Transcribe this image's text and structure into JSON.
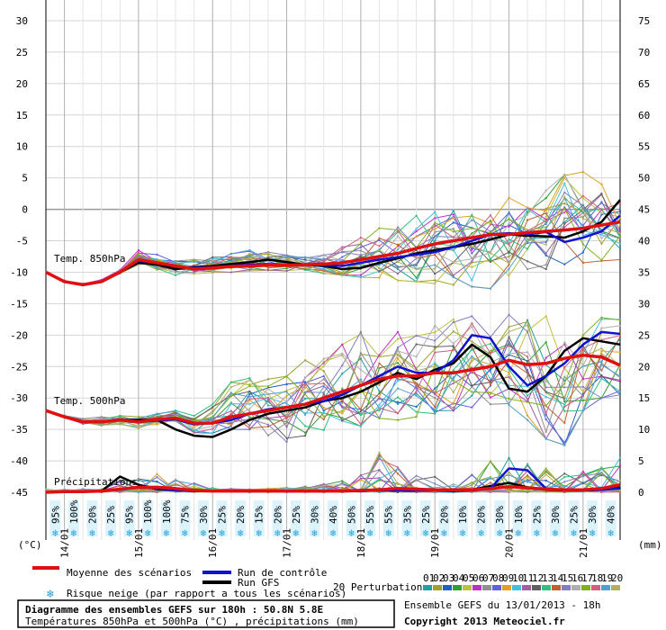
{
  "chart_data": {
    "type": "line",
    "title": "Diagramme des ensembles GEFS sur 180h : 50.8N 5.8E",
    "subtitle": "Températures 850hPa et 500hPa (°C) , précipitations (mm)",
    "left_axis": {
      "unit": "(°C)",
      "ticks": [
        30,
        25,
        20,
        15,
        10,
        5,
        0,
        -5,
        -10,
        -15,
        -20,
        -25,
        -30,
        -35,
        -40,
        -45
      ],
      "range": [
        -45,
        30
      ]
    },
    "right_axis": {
      "unit": "(mm)",
      "ticks": [
        75,
        70,
        65,
        60,
        55,
        50,
        45,
        40,
        35,
        30,
        25,
        20,
        15,
        10,
        5,
        0
      ],
      "range": [
        0,
        75
      ]
    },
    "x_step_hours": 6,
    "date_labels": [
      {
        "hour": 6,
        "label": "14/01"
      },
      {
        "hour": 30,
        "label": "15/01"
      },
      {
        "hour": 54,
        "label": "16/01"
      },
      {
        "hour": 78,
        "label": "17/01"
      },
      {
        "hour": 102,
        "label": "18/01"
      },
      {
        "hour": 126,
        "label": "19/01"
      },
      {
        "hour": 150,
        "label": "20/01"
      },
      {
        "hour": 174,
        "label": "21/01"
      }
    ],
    "panel_labels": {
      "t850": "Temp. 850hPa",
      "t500": "Temp. 500hPa",
      "precip": "Précipitations"
    },
    "snow_risk": [
      "95%",
      "100%",
      "20%",
      "25%",
      "95%",
      "100%",
      "100%",
      "75%",
      "30%",
      "25%",
      "20%",
      "15%",
      "20%",
      "25%",
      "30%",
      "40%",
      "50%",
      "55%",
      "55%",
      "35%",
      "25%",
      "20%",
      "10%",
      "20%",
      "30%",
      "10%",
      "25%",
      "30%",
      "25%",
      "30%",
      "40%"
    ],
    "series": [
      {
        "name": "Moyenne des scénarios",
        "color": "#e01010",
        "t850": [
          -10,
          -11.5,
          -12,
          -11.5,
          -10,
          -8,
          -8.5,
          -9,
          -9.5,
          -9.3,
          -9.1,
          -9,
          -8.9,
          -8.9,
          -8.8,
          -8.7,
          -8.5,
          -8.0,
          -7.5,
          -7,
          -6.2,
          -5.5,
          -5,
          -4.5,
          -4,
          -4,
          -3.7,
          -3.5,
          -3.3,
          -3,
          -2.5,
          -2
        ],
        "t500": [
          -32,
          -33,
          -33.8,
          -33.8,
          -33.5,
          -33.8,
          -33.4,
          -33.2,
          -34,
          -34,
          -33,
          -32.5,
          -32,
          -31.5,
          -31,
          -30,
          -29,
          -28,
          -27,
          -26.5,
          -26.5,
          -26,
          -26,
          -25.5,
          -25,
          -24,
          -24.7,
          -24.5,
          -23.7,
          -23.2,
          -23.5,
          -24.8
        ],
        "precip": [
          0,
          0.1,
          0.1,
          0.2,
          0.5,
          0.8,
          0.8,
          0.6,
          0.3,
          0.2,
          0.2,
          0.2,
          0.2,
          0.2,
          0.2,
          0.2,
          0.2,
          0.3,
          0.4,
          0.6,
          0.5,
          0.4,
          0.4,
          0.4,
          0.6,
          0.9,
          0.7,
          0.5,
          0.4,
          0.4,
          0.6,
          1.2
        ]
      },
      {
        "name": "Run de contrôle",
        "color": "#1010d0",
        "t850": [
          -10,
          -11.5,
          -12,
          -11.5,
          -10,
          -8.2,
          -8.5,
          -9.1,
          -9.3,
          -9.2,
          -9.0,
          -8.8,
          -8.7,
          -8.8,
          -8.8,
          -8.9,
          -9.0,
          -8.5,
          -8.0,
          -7.6,
          -7.2,
          -6.8,
          -6.0,
          -5.0,
          -4.0,
          -3.8,
          -4.0,
          -3.6,
          -5.2,
          -4.5,
          -3.5,
          -1.0
        ],
        "t500": [
          -32,
          -33,
          -33.8,
          -33.8,
          -33.5,
          -33.8,
          -33.6,
          -33.4,
          -34.2,
          -34.0,
          -33.5,
          -32.5,
          -31.8,
          -31.5,
          -31.0,
          -30.5,
          -29.5,
          -28.0,
          -26.5,
          -25.0,
          -26.0,
          -26.0,
          -24.0,
          -20.0,
          -20.5,
          -25.0,
          -28.0,
          -26.5,
          -24.5,
          -21.5,
          -19.5,
          -19.8
        ],
        "precip": [
          0,
          0.1,
          0.1,
          0.2,
          0.4,
          0.8,
          0.6,
          0.3,
          0.2,
          0.2,
          0.2,
          0.2,
          0.2,
          0.2,
          0.2,
          0.2,
          0.2,
          0.2,
          0.3,
          0.3,
          0.3,
          0.3,
          0.2,
          0.3,
          0.6,
          3.8,
          3.5,
          0.6,
          0.3,
          0.3,
          0.4,
          0.6
        ]
      },
      {
        "name": "Run GFS",
        "color": "#000000",
        "t850": [
          -10,
          -11.5,
          -12,
          -11.5,
          -10,
          -8.5,
          -8.8,
          -9.5,
          -9.2,
          -9.0,
          -8.7,
          -8.4,
          -8.0,
          -8.4,
          -8.8,
          -9.0,
          -9.5,
          -9.3,
          -8.5,
          -7.8,
          -7.0,
          -6.5,
          -6.0,
          -5.5,
          -4.8,
          -4.0,
          -4.2,
          -4.3,
          -4.5,
          -3.5,
          -2.0,
          1.5
        ],
        "t500": [
          -32,
          -33,
          -33.8,
          -33.8,
          -33.5,
          -33.5,
          -33.5,
          -35.0,
          -36.0,
          -36.2,
          -35.0,
          -33.5,
          -32.5,
          -32.0,
          -31.5,
          -30.5,
          -30.0,
          -29.0,
          -27.5,
          -26.0,
          -27.0,
          -25.5,
          -24.5,
          -21.5,
          -23.5,
          -28.5,
          -29.0,
          -26.5,
          -22.5,
          -20.5,
          -21.0,
          -21.5
        ],
        "precip": [
          0,
          0.1,
          0.1,
          0.2,
          2.5,
          1.2,
          0.5,
          0.3,
          0.2,
          0.2,
          0.2,
          0.2,
          0.2,
          0.2,
          0.2,
          0.2,
          0.2,
          0.2,
          0.3,
          0.3,
          0.3,
          0.3,
          0.2,
          0.4,
          1.0,
          1.5,
          0.8,
          0.4,
          0.3,
          0.3,
          0.4,
          0.8
        ]
      }
    ],
    "perturbations": {
      "label": "20 Perturbations",
      "ids": [
        "01",
        "02",
        "03",
        "04",
        "05",
        "06",
        "07",
        "08",
        "09",
        "10",
        "11",
        "12",
        "13",
        "14",
        "15",
        "16",
        "17",
        "18",
        "19",
        "20"
      ],
      "colors": [
        "#20a0a0",
        "#a0a030",
        "#2060c0",
        "#30a030",
        "#c0c040",
        "#c030c0",
        "#909090",
        "#6060e0",
        "#e0a020",
        "#40c0e0",
        "#a060a0",
        "#606060",
        "#30c080",
        "#c06030",
        "#8080c0",
        "#b0b0b0",
        "#80b020",
        "#d06080",
        "#50a0d0",
        "#b0b060"
      ]
    },
    "ensemble_spread": {
      "t850_low": [
        -10,
        -11.5,
        -12,
        -11.5,
        -10.2,
        -8.8,
        -9.6,
        -10.5,
        -10.5,
        -10.2,
        -10.0,
        -9.8,
        -9.7,
        -9.8,
        -10.0,
        -10.2,
        -10.5,
        -10.8,
        -11.0,
        -11.3,
        -11.5,
        -11.8,
        -12.0,
        -12.3,
        -12.6,
        -11.5,
        -10.5,
        -9.5,
        -9.0,
        -8.5,
        -8.2,
        -8.0
      ],
      "t850_high": [
        -10,
        -11.3,
        -11.8,
        -11.2,
        -9.6,
        -6.5,
        -7.2,
        -7.8,
        -8.0,
        -7.5,
        -6.8,
        -6.5,
        -6.8,
        -7.3,
        -7.6,
        -7.2,
        -6.0,
        -4.5,
        -3.0,
        -1.8,
        -1.0,
        0.5,
        1.0,
        1.5,
        1.2,
        2.0,
        2.5,
        3.0,
        5.5,
        6.2,
        4.0,
        2.0
      ],
      "t500_low": [
        -32,
        -33.2,
        -34.2,
        -34.5,
        -34.2,
        -34.8,
        -34.2,
        -34.0,
        -35.5,
        -36.0,
        -35.5,
        -35.0,
        -36.0,
        -37.0,
        -36.0,
        -35.5,
        -35.0,
        -34.5,
        -34.0,
        -33.5,
        -33.0,
        -32.5,
        -32.0,
        -31.5,
        -31.0,
        -32.0,
        -33.5,
        -36.5,
        -37.5,
        -32.0,
        -30.0,
        -29.5
      ],
      "t500_high": [
        -32,
        -32.8,
        -33.3,
        -33.0,
        -32.8,
        -33.0,
        -32.5,
        -32.0,
        -32.5,
        -31.0,
        -27.5,
        -26.5,
        -27.0,
        -25.5,
        -24.0,
        -22.5,
        -21.5,
        -19.5,
        -19.0,
        -19.5,
        -19.2,
        -18.5,
        -17.5,
        -17.0,
        -17.5,
        -16.5,
        -16.0,
        -17.0,
        -17.5,
        -18.0,
        -17.2,
        -17.5
      ],
      "precip_high": [
        0,
        0.2,
        0.3,
        0.5,
        2.0,
        2.5,
        3.0,
        2.5,
        1.5,
        0.8,
        0.6,
        0.5,
        0.6,
        0.8,
        1.0,
        1.5,
        2.0,
        3.0,
        6.5,
        4.0,
        3.0,
        2.5,
        2.0,
        3.0,
        5.0,
        6.5,
        5.5,
        4.0,
        3.0,
        3.5,
        5.0,
        7.0
      ]
    },
    "legend": {
      "mean": "Moyenne des scénarios",
      "control": "Run de contrôle",
      "gfs": "Run GFS",
      "snow": "Risque neige (par rapport a tous les scénarios)"
    },
    "info": {
      "run": "Ensemble GEFS du 13/01/2013 - 18h",
      "copyright": "Copyright 2013 Meteociel.fr"
    },
    "grid": true
  }
}
